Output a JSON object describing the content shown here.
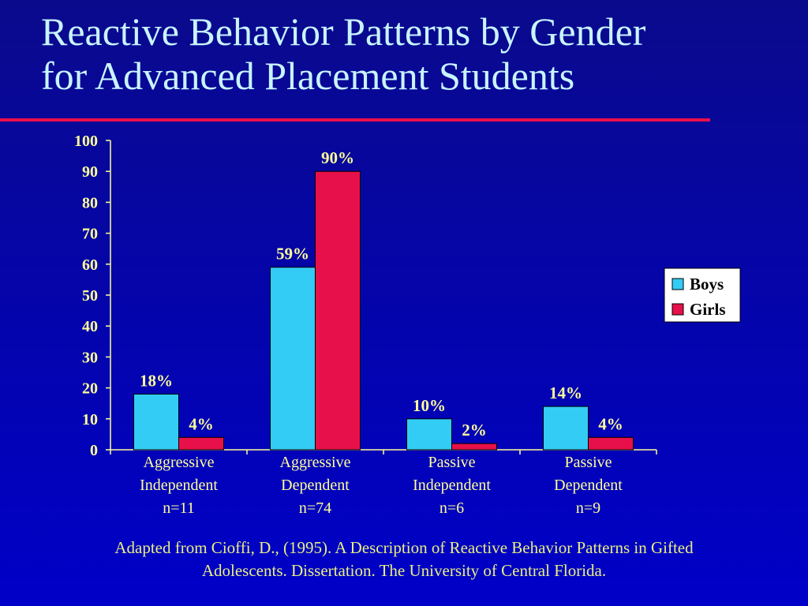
{
  "slide": {
    "title_line1": "Reactive Behavior Patterns by Gender",
    "title_line2": "for Advanced Placement Students",
    "citation_line1": "Adapted from Cioffi, D., (1995). A Description of Reactive Behavior Patterns in Gifted",
    "citation_line2": "Adolescents. Dissertation. The University of Central Florida."
  },
  "colors": {
    "background": "#0505a8",
    "title": "#c8f4ff",
    "accent_rule": "#e8104a",
    "text": "#ffff99",
    "boys": "#33ccf5",
    "girls": "#e8104a"
  },
  "chart_data": {
    "type": "bar",
    "title": "",
    "xlabel": "",
    "ylabel": "",
    "ylim": [
      0,
      100
    ],
    "yticks": [
      0,
      10,
      20,
      30,
      40,
      50,
      60,
      70,
      80,
      90,
      100
    ],
    "grid": false,
    "legend_position": "right",
    "categories": [
      [
        "Aggressive",
        "Independent",
        "n=11"
      ],
      [
        "Aggressive",
        "Dependent",
        "n=74"
      ],
      [
        "Passive",
        "Independent",
        "n=6"
      ],
      [
        "Passive",
        "Dependent",
        "n=9"
      ]
    ],
    "series": [
      {
        "name": "Boys",
        "color": "#33ccf5",
        "values": [
          18,
          59,
          10,
          14
        ],
        "labels": [
          "18%",
          "59%",
          "10%",
          "14%"
        ]
      },
      {
        "name": "Girls",
        "color": "#e8104a",
        "values": [
          4,
          90,
          2,
          4
        ],
        "labels": [
          "4%",
          "90%",
          "2%",
          "4%"
        ]
      }
    ]
  }
}
